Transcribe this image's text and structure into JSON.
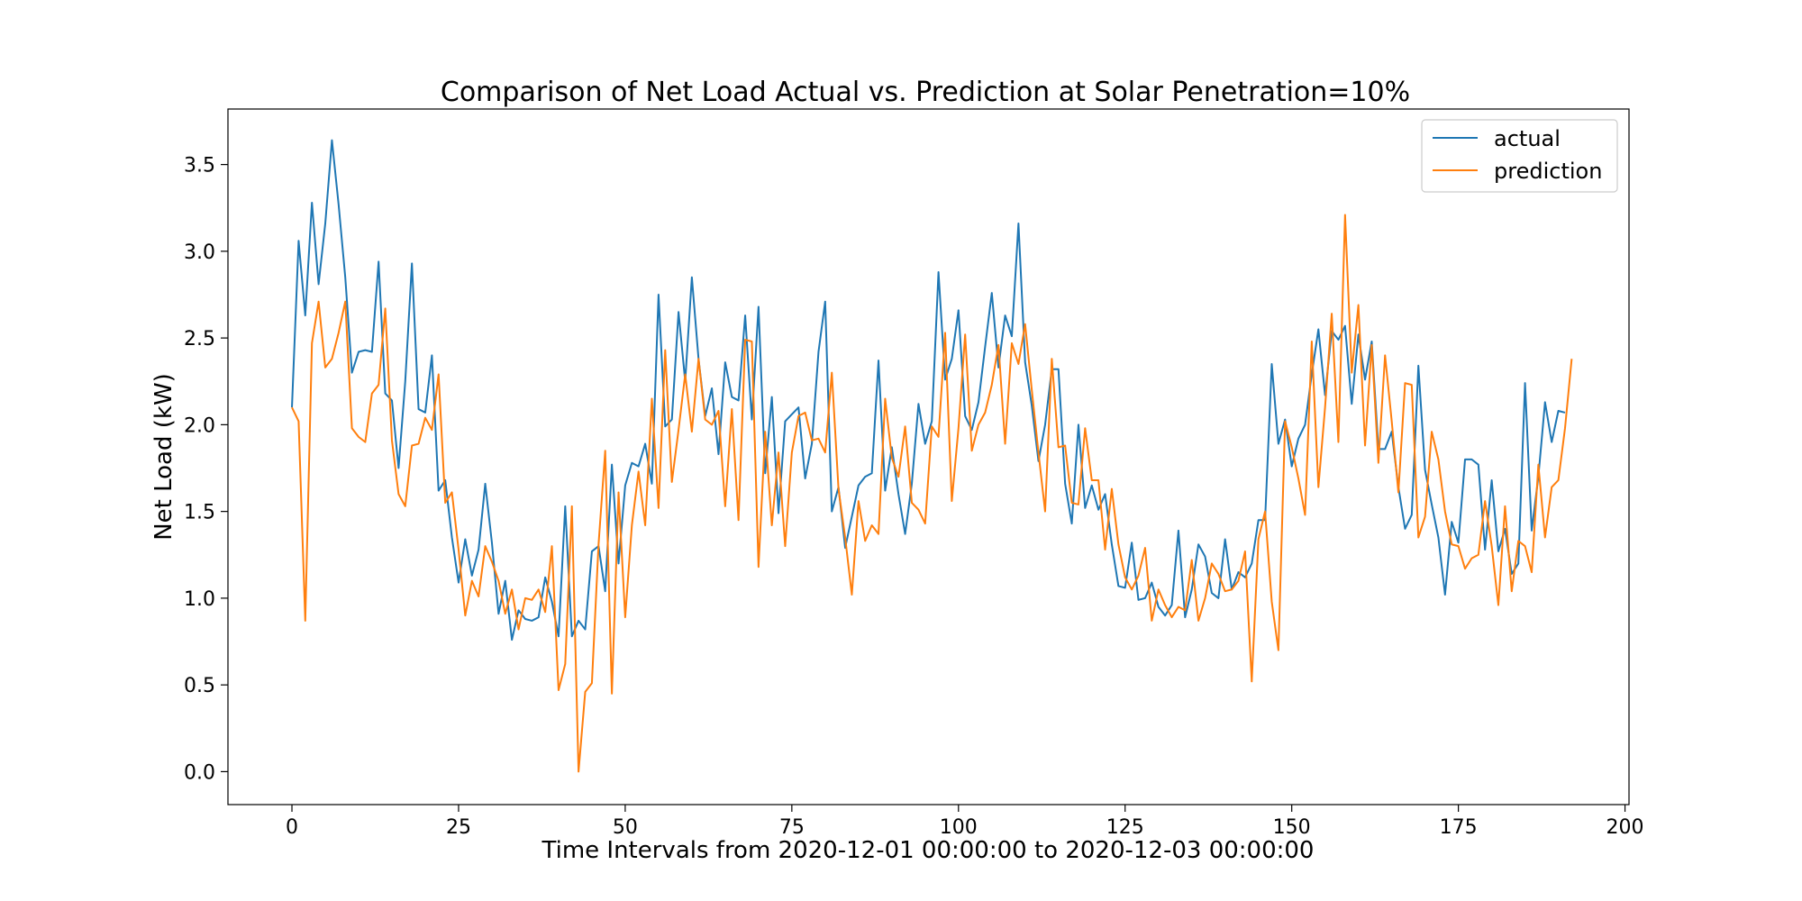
{
  "chart_data": {
    "type": "line",
    "title": "Comparison of Net Load Actual vs. Prediction at Solar Penetration=10%",
    "xlabel": "Time Intervals from 2020-12-01 00:00:00 to 2020-12-03 00:00:00",
    "ylabel": "Net Load (kW)",
    "xlim": [
      -9.6,
      200.6
    ],
    "ylim": [
      -0.19,
      3.82
    ],
    "xticks": [
      0,
      25,
      50,
      75,
      100,
      125,
      150,
      175,
      200
    ],
    "xtick_labels": [
      "0",
      "25",
      "50",
      "75",
      "100",
      "125",
      "150",
      "175",
      "200"
    ],
    "yticks": [
      0.0,
      0.5,
      1.0,
      1.5,
      2.0,
      2.5,
      3.0,
      3.5
    ],
    "ytick_labels": [
      "0.0",
      "0.5",
      "1.0",
      "1.5",
      "2.0",
      "2.5",
      "3.0",
      "3.5"
    ],
    "grid": false,
    "legend": "top-right",
    "series": [
      {
        "name": "actual",
        "color": "#1f77b4",
        "values": [
          2.1,
          3.06,
          2.63,
          3.28,
          2.81,
          3.16,
          3.64,
          3.27,
          2.85,
          2.3,
          2.42,
          2.43,
          2.42,
          2.94,
          2.18,
          2.14,
          1.75,
          2.25,
          2.93,
          2.09,
          2.07,
          2.4,
          1.62,
          1.68,
          1.35,
          1.09,
          1.34,
          1.13,
          1.28,
          1.66,
          1.32,
          0.91,
          1.1,
          0.76,
          0.93,
          0.88,
          0.87,
          0.89,
          1.12,
          0.98,
          0.78,
          1.53,
          0.78,
          0.87,
          0.82,
          1.27,
          1.3,
          1.04,
          1.77,
          1.2,
          1.65,
          1.78,
          1.76,
          1.89,
          1.66,
          2.75,
          1.99,
          2.03,
          2.65,
          2.25,
          2.85,
          2.38,
          2.05,
          2.21,
          1.83,
          2.36,
          2.16,
          2.14,
          2.63,
          2.03,
          2.68,
          1.72,
          2.16,
          1.49,
          2.02,
          2.06,
          2.1,
          1.69,
          1.89,
          2.42,
          2.71,
          1.5,
          1.64,
          1.29,
          1.47,
          1.65,
          1.7,
          1.72,
          2.37,
          1.62,
          1.87,
          1.6,
          1.37,
          1.66,
          2.12,
          1.89,
          2.02,
          2.88,
          2.26,
          2.38,
          2.66,
          2.05,
          1.97,
          2.13,
          2.45,
          2.76,
          2.33,
          2.63,
          2.51,
          3.16,
          2.36,
          2.11,
          1.79,
          2.0,
          2.32,
          2.32,
          1.66,
          1.43,
          2.0,
          1.52,
          1.65,
          1.51,
          1.6,
          1.31,
          1.07,
          1.06,
          1.32,
          0.99,
          1.0,
          1.09,
          0.95,
          0.9,
          0.96,
          1.39,
          0.89,
          1.05,
          1.31,
          1.24,
          1.03,
          1.0,
          1.34,
          1.05,
          1.15,
          1.12,
          1.2,
          1.45,
          1.45,
          2.35,
          1.89,
          2.03,
          1.76,
          1.92,
          2.0,
          2.29,
          2.55,
          2.17,
          2.54,
          2.49,
          2.57,
          2.12,
          2.52,
          2.26,
          2.48,
          1.86,
          1.86,
          1.96,
          1.64,
          1.4,
          1.48,
          2.34,
          1.74,
          1.54,
          1.35,
          1.02,
          1.44,
          1.32,
          1.8,
          1.8,
          1.77,
          1.28,
          1.68,
          1.27,
          1.4,
          1.14,
          1.2,
          2.24,
          1.39,
          1.7,
          2.13,
          1.9,
          2.08,
          2.07
        ]
      },
      {
        "name": "prediction",
        "color": "#ff7f0e",
        "values": [
          2.1,
          2.02,
          0.87,
          2.47,
          2.71,
          2.33,
          2.38,
          2.53,
          2.71,
          1.98,
          1.93,
          1.9,
          2.18,
          2.23,
          2.67,
          1.91,
          1.6,
          1.53,
          1.88,
          1.89,
          2.04,
          1.97,
          2.29,
          1.55,
          1.61,
          1.28,
          0.9,
          1.1,
          1.01,
          1.3,
          1.21,
          1.1,
          0.91,
          1.05,
          0.82,
          1.0,
          0.99,
          1.05,
          0.92,
          1.3,
          0.47,
          0.62,
          1.53,
          0.0,
          0.46,
          0.51,
          1.31,
          1.85,
          0.45,
          1.61,
          0.89,
          1.42,
          1.73,
          1.42,
          2.15,
          1.52,
          2.43,
          1.67,
          1.97,
          2.29,
          1.96,
          2.38,
          2.03,
          2.0,
          2.08,
          1.53,
          2.09,
          1.45,
          2.49,
          2.48,
          1.18,
          1.96,
          1.42,
          1.84,
          1.3,
          1.84,
          2.05,
          2.07,
          1.91,
          1.92,
          1.84,
          2.3,
          1.63,
          1.35,
          1.02,
          1.56,
          1.33,
          1.42,
          1.37,
          2.15,
          1.81,
          1.7,
          1.99,
          1.55,
          1.51,
          1.43,
          1.99,
          1.93,
          2.53,
          1.56,
          1.98,
          2.52,
          1.85,
          2.0,
          2.07,
          2.23,
          2.46,
          1.89,
          2.47,
          2.35,
          2.58,
          2.2,
          1.84,
          1.5,
          2.38,
          1.87,
          1.88,
          1.55,
          1.54,
          1.98,
          1.68,
          1.68,
          1.28,
          1.63,
          1.31,
          1.12,
          1.05,
          1.13,
          1.29,
          0.87,
          1.05,
          0.96,
          0.89,
          0.95,
          0.93,
          1.22,
          0.87,
          1.0,
          1.2,
          1.14,
          1.04,
          1.05,
          1.1,
          1.27,
          0.52,
          1.34,
          1.5,
          0.98,
          0.7,
          2.02,
          1.87,
          1.69,
          1.48,
          2.48,
          1.64,
          2.1,
          2.64,
          1.9,
          3.21,
          2.3,
          2.69,
          1.88,
          2.46,
          1.78,
          2.4,
          2.02,
          1.61,
          2.24,
          2.23,
          1.35,
          1.47,
          1.96,
          1.8,
          1.5,
          1.31,
          1.3,
          1.17,
          1.23,
          1.25,
          1.56,
          1.3,
          0.96,
          1.53,
          1.04,
          1.33,
          1.3,
          1.15,
          1.77,
          1.35,
          1.64,
          1.68,
          1.98,
          2.38
        ]
      }
    ]
  }
}
